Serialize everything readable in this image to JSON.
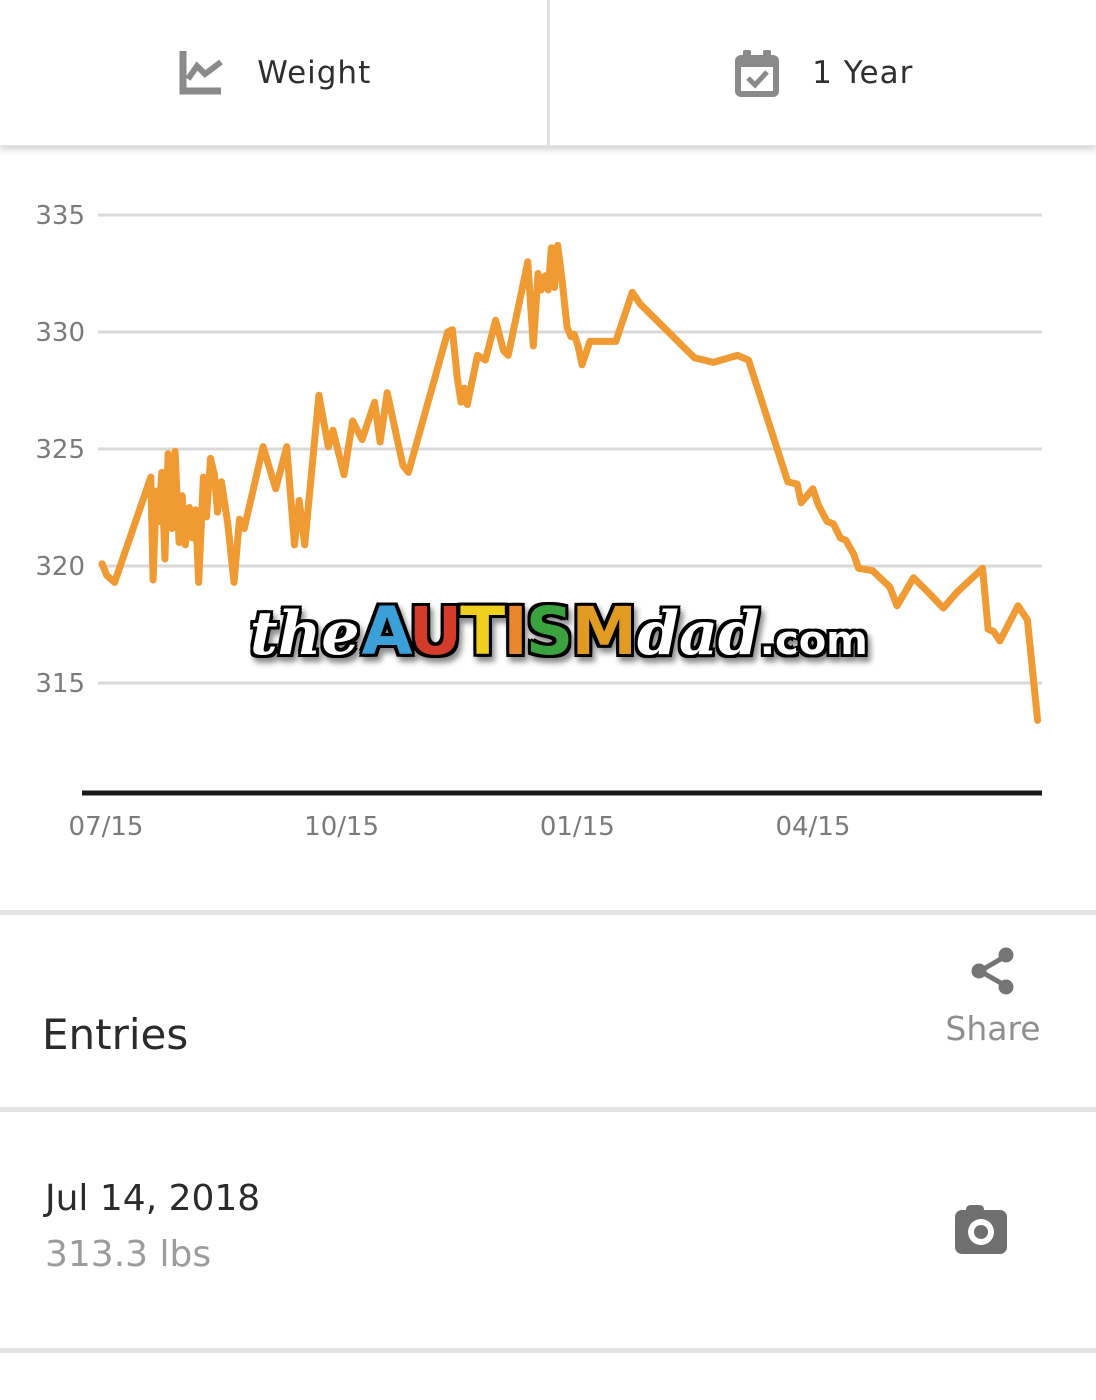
{
  "header": {
    "left_tab": {
      "icon": "line-chart-icon",
      "label": "Weight"
    },
    "right_tab": {
      "icon": "calendar-check-icon",
      "label": "1 Year"
    }
  },
  "chart_data": {
    "type": "line",
    "title": "",
    "xlabel": "",
    "ylabel": "",
    "x_unit": "months since 07/15",
    "y_unit": "lbs",
    "grid": "horizontal",
    "legend": "none",
    "line_color": "#f09a33",
    "gridline_color": "#d9d9d9",
    "axis_line_color": "#1a1a1a",
    "tick_label_color": "#7b7b7b",
    "y_ticks": [
      335,
      330,
      325,
      320,
      315
    ],
    "ylim": [
      312.5,
      336.5
    ],
    "x_ticks": [
      {
        "label": "07/15",
        "month": 0
      },
      {
        "label": "10/15",
        "month": 3
      },
      {
        "label": "01/15",
        "month": 6
      },
      {
        "label": "04/15",
        "month": 9
      }
    ],
    "xlim_months": [
      -0.3,
      12.1
    ],
    "series": [
      {
        "name": "Weight (lbs)",
        "points": [
          [
            -0.05,
            320.1
          ],
          [
            0.01,
            319.6
          ],
          [
            0.11,
            319.3
          ],
          [
            0.57,
            323.8
          ],
          [
            0.6,
            319.4
          ],
          [
            0.64,
            323.2
          ],
          [
            0.67,
            321.9
          ],
          [
            0.71,
            324.0
          ],
          [
            0.75,
            320.3
          ],
          [
            0.79,
            324.8
          ],
          [
            0.84,
            321.6
          ],
          [
            0.88,
            324.9
          ],
          [
            0.93,
            321.0
          ],
          [
            0.97,
            323.0
          ],
          [
            1.01,
            320.9
          ],
          [
            1.06,
            322.5
          ],
          [
            1.1,
            321.2
          ],
          [
            1.14,
            322.4
          ],
          [
            1.18,
            319.3
          ],
          [
            1.24,
            323.8
          ],
          [
            1.28,
            322.1
          ],
          [
            1.33,
            324.6
          ],
          [
            1.38,
            323.9
          ],
          [
            1.42,
            322.3
          ],
          [
            1.47,
            323.6
          ],
          [
            1.55,
            321.8
          ],
          [
            1.63,
            319.3
          ],
          [
            1.7,
            322.0
          ],
          [
            1.76,
            321.6
          ],
          [
            2.0,
            325.1
          ],
          [
            2.16,
            323.3
          ],
          [
            2.3,
            325.1
          ],
          [
            2.4,
            320.9
          ],
          [
            2.46,
            322.8
          ],
          [
            2.53,
            320.9
          ],
          [
            2.71,
            327.3
          ],
          [
            2.83,
            325.1
          ],
          [
            2.89,
            325.8
          ],
          [
            3.03,
            323.9
          ],
          [
            3.14,
            326.2
          ],
          [
            3.26,
            325.4
          ],
          [
            3.42,
            327.0
          ],
          [
            3.49,
            325.3
          ],
          [
            3.58,
            327.4
          ],
          [
            3.78,
            324.3
          ],
          [
            3.85,
            324.0
          ],
          [
            4.35,
            330.0
          ],
          [
            4.41,
            330.1
          ],
          [
            4.47,
            328.1
          ],
          [
            4.52,
            327.0
          ],
          [
            4.56,
            327.6
          ],
          [
            4.6,
            326.9
          ],
          [
            4.73,
            329.0
          ],
          [
            4.83,
            328.8
          ],
          [
            4.96,
            330.5
          ],
          [
            5.06,
            329.2
          ],
          [
            5.12,
            329.0
          ],
          [
            5.37,
            333.0
          ],
          [
            5.44,
            329.4
          ],
          [
            5.5,
            332.5
          ],
          [
            5.54,
            331.8
          ],
          [
            5.59,
            332.4
          ],
          [
            5.63,
            331.8
          ],
          [
            5.67,
            333.6
          ],
          [
            5.71,
            331.9
          ],
          [
            5.75,
            333.7
          ],
          [
            5.8,
            332.4
          ],
          [
            5.87,
            330.2
          ],
          [
            5.92,
            329.8
          ],
          [
            5.96,
            329.9
          ],
          [
            6.01,
            329.4
          ],
          [
            6.06,
            328.6
          ],
          [
            6.16,
            329.6
          ],
          [
            6.49,
            329.6
          ],
          [
            6.7,
            331.7
          ],
          [
            6.8,
            331.2
          ],
          [
            7.49,
            328.9
          ],
          [
            7.73,
            328.7
          ],
          [
            8.04,
            329.0
          ],
          [
            8.18,
            328.8
          ],
          [
            8.68,
            323.6
          ],
          [
            8.8,
            323.5
          ],
          [
            8.85,
            322.7
          ],
          [
            9.0,
            323.3
          ],
          [
            9.07,
            322.6
          ],
          [
            9.18,
            321.9
          ],
          [
            9.26,
            321.8
          ],
          [
            9.35,
            321.2
          ],
          [
            9.42,
            321.1
          ],
          [
            9.52,
            320.5
          ],
          [
            9.58,
            319.9
          ],
          [
            9.76,
            319.8
          ],
          [
            9.98,
            319.1
          ],
          [
            10.07,
            318.3
          ],
          [
            10.28,
            319.5
          ],
          [
            10.46,
            318.9
          ],
          [
            10.66,
            318.2
          ],
          [
            10.84,
            318.9
          ],
          [
            11.16,
            319.9
          ],
          [
            11.23,
            317.3
          ],
          [
            11.3,
            317.2
          ],
          [
            11.38,
            316.8
          ],
          [
            11.61,
            318.3
          ],
          [
            11.73,
            317.7
          ],
          [
            11.86,
            313.4
          ]
        ]
      }
    ]
  },
  "watermark": {
    "part_the": "the",
    "part_autism": "AUTISM",
    "part_dad": "dad",
    "part_com": ".com",
    "autism_letter_colors": [
      "#3b9fd8",
      "#d33b2a",
      "#f0d01f",
      "#e8872b",
      "#3aa33f",
      "#e09b22"
    ]
  },
  "entries": {
    "title": "Entries",
    "share_label": "Share",
    "share_icon": "share-icon"
  },
  "entry_list": [
    {
      "date": "Jul 14, 2018",
      "weight": "313.3 lbs",
      "photo_icon": "camera-icon"
    }
  ],
  "colors": {
    "icon_gray": "#8a8a8a",
    "camera_gray": "#6f6f6f",
    "divider": "#e3e3e3",
    "text_dark": "#2b2b2b",
    "text_gray": "#9c9c9c"
  }
}
